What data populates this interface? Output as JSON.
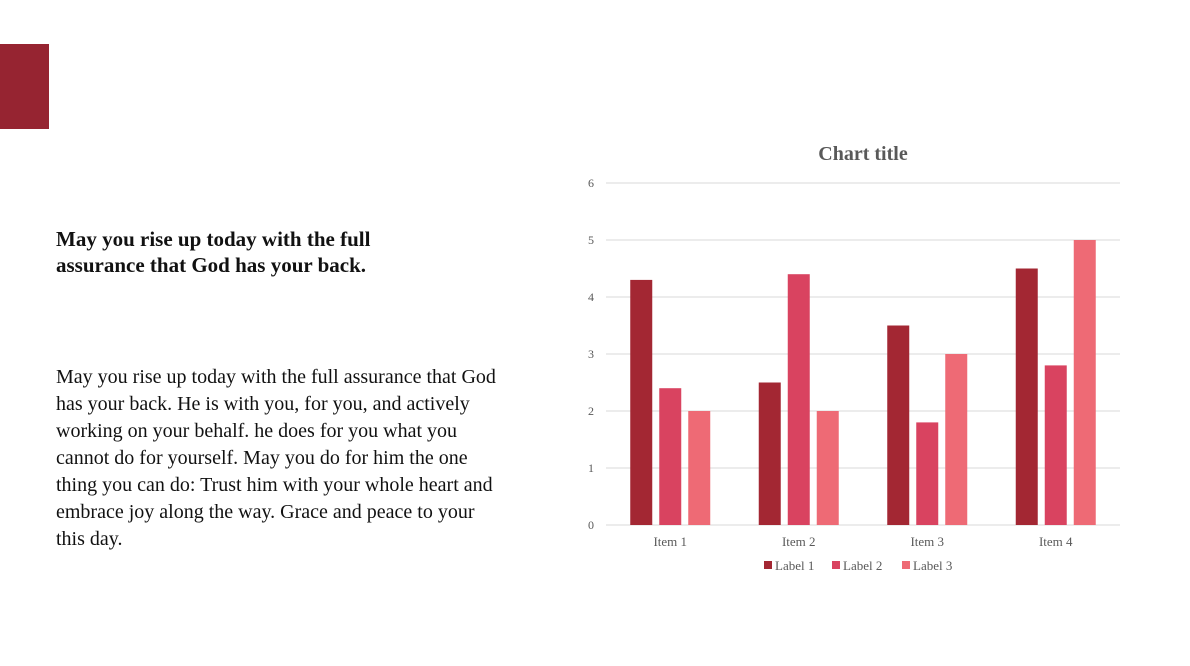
{
  "slide": {
    "accent_color": "#962431",
    "heading": "May you rise up today with the full assurance that God has your back.",
    "body": "May you rise up today with the full assurance that God has your back. He is with you, for you, and actively working on your behalf. he does for you what you cannot do for yourself. May you do for him the one thing you can do: Trust him with your whole heart and embrace joy along the way. Grace and peace to your this day."
  },
  "chart_data": {
    "type": "bar",
    "title": "Chart title",
    "categories": [
      "Item 1",
      "Item 2",
      "Item 3",
      "Item 4"
    ],
    "series": [
      {
        "name": "Label 1",
        "color": "#A32733",
        "values": [
          4.3,
          2.5,
          3.5,
          4.5
        ]
      },
      {
        "name": "Label 2",
        "color": "#D94360",
        "values": [
          2.4,
          4.4,
          1.8,
          2.8
        ]
      },
      {
        "name": "Label 3",
        "color": "#EE6A75",
        "values": [
          2,
          2,
          3,
          5
        ]
      }
    ],
    "ylim": [
      0,
      6
    ],
    "yticks": [
      0,
      1,
      2,
      3,
      4,
      5,
      6
    ],
    "grid": true,
    "legend_position": "bottom"
  }
}
